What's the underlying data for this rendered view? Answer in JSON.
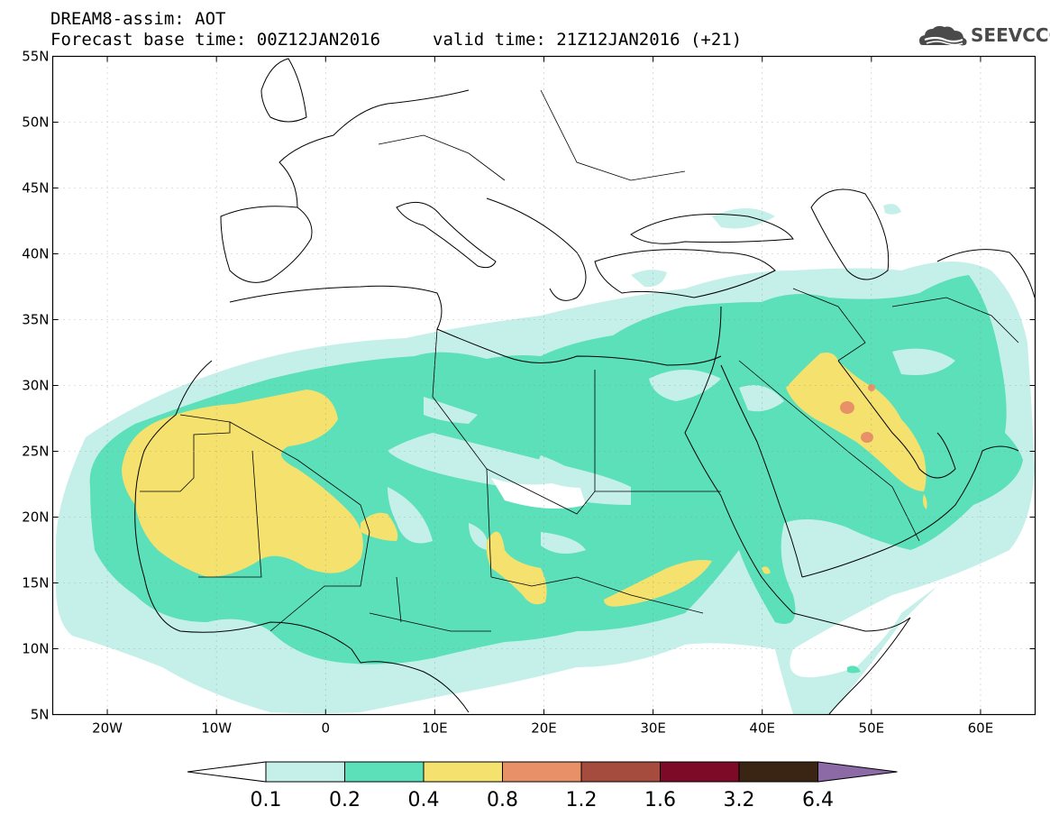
{
  "header": {
    "title_line1": "DREAM8-assim: AOT",
    "title_line2": "Forecast base time: 00Z12JAN2016",
    "valid_time": "valid time: 21Z12JAN2016 (+21)",
    "logo_text": "SEEVCCC"
  },
  "map": {
    "lat_labels": [
      "55N",
      "50N",
      "45N",
      "40N",
      "35N",
      "30N",
      "25N",
      "20N",
      "15N",
      "10N",
      "5N"
    ],
    "lon_labels": [
      "20W",
      "10W",
      "0",
      "10E",
      "20E",
      "30E",
      "40E",
      "50E",
      "60E"
    ],
    "extent": {
      "lon_min": -25,
      "lon_max": 65,
      "lat_min": 5,
      "lat_max": 55
    }
  },
  "legend": {
    "variable": "AOT",
    "levels": [
      "0.1",
      "0.2",
      "0.4",
      "0.8",
      "1.2",
      "1.6",
      "3.2",
      "6.4"
    ],
    "colors": [
      "#ffffff",
      "#c5f0ea",
      "#5ce0b9",
      "#f5e16e",
      "#e89068",
      "#a54c3e",
      "#7d0a26",
      "#3a2414",
      "#8c6aa6"
    ]
  }
}
